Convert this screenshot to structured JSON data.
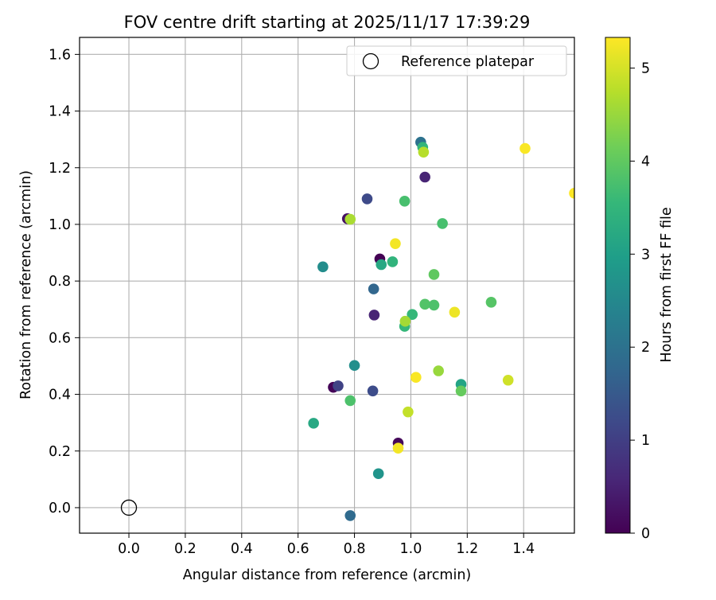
{
  "chart_data": {
    "type": "scatter",
    "title": "FOV centre drift starting at 2025/11/17 17:39:29",
    "xlabel": "Angular distance from reference (arcmin)",
    "ylabel": "Rotation from reference (arcmin)",
    "xlim": [
      -0.175,
      1.58
    ],
    "ylim": [
      -0.09,
      1.66
    ],
    "xticks": [
      0.0,
      0.2,
      0.4,
      0.6,
      0.8,
      1.0,
      1.2,
      1.4
    ],
    "xtick_labels": [
      "0.0",
      "0.2",
      "0.4",
      "0.6",
      "0.8",
      "1.0",
      "1.2",
      "1.4"
    ],
    "yticks": [
      0.0,
      0.2,
      0.4,
      0.6,
      0.8,
      1.0,
      1.2,
      1.4,
      1.6
    ],
    "ytick_labels": [
      "0.0",
      "0.2",
      "0.4",
      "0.6",
      "0.8",
      "1.0",
      "1.2",
      "1.4",
      "1.6"
    ],
    "grid": true,
    "legend": {
      "position": "top-right",
      "label": "Reference platepar",
      "point": {
        "x": 0.0,
        "y": 0.0
      }
    },
    "colorbar": {
      "label": "Hours from first FF file",
      "colormap": "viridis",
      "min": 0,
      "max": 5.33,
      "ticks": [
        0,
        1,
        2,
        3,
        4,
        5
      ],
      "tick_labels": [
        "0",
        "1",
        "2",
        "3",
        "4",
        "5"
      ],
      "stops": [
        "#440154",
        "#482878",
        "#3e4989",
        "#31688e",
        "#26828e",
        "#1f9e89",
        "#35b779",
        "#6ece58",
        "#b5de2b",
        "#fde725"
      ]
    },
    "points": [
      {
        "x": 0.725,
        "y": 0.425,
        "hours": 0.05
      },
      {
        "x": 0.775,
        "y": 1.02,
        "hours": 0.25
      },
      {
        "x": 0.89,
        "y": 0.878,
        "hours": 0.0
      },
      {
        "x": 0.955,
        "y": 0.228,
        "hours": 0.1
      },
      {
        "x": 1.05,
        "y": 1.167,
        "hours": 0.55
      },
      {
        "x": 0.87,
        "y": 0.68,
        "hours": 0.55
      },
      {
        "x": 0.742,
        "y": 0.43,
        "hours": 1.05
      },
      {
        "x": 0.845,
        "y": 1.09,
        "hours": 1.2
      },
      {
        "x": 0.865,
        "y": 0.412,
        "hours": 1.25
      },
      {
        "x": 0.868,
        "y": 0.772,
        "hours": 1.75
      },
      {
        "x": 1.035,
        "y": 1.29,
        "hours": 2.0
      },
      {
        "x": 0.785,
        "y": -0.028,
        "hours": 1.85
      },
      {
        "x": 0.688,
        "y": 0.85,
        "hours": 2.6
      },
      {
        "x": 0.8,
        "y": 0.502,
        "hours": 2.65
      },
      {
        "x": 0.885,
        "y": 0.12,
        "hours": 2.75
      },
      {
        "x": 1.178,
        "y": 0.435,
        "hours": 3.1
      },
      {
        "x": 0.655,
        "y": 0.298,
        "hours": 3.2
      },
      {
        "x": 0.895,
        "y": 0.858,
        "hours": 3.2
      },
      {
        "x": 0.935,
        "y": 0.868,
        "hours": 3.45
      },
      {
        "x": 1.042,
        "y": 1.272,
        "hours": 3.5
      },
      {
        "x": 0.978,
        "y": 0.64,
        "hours": 3.55
      },
      {
        "x": 1.005,
        "y": 0.682,
        "hours": 3.55
      },
      {
        "x": 0.785,
        "y": 0.378,
        "hours": 3.8
      },
      {
        "x": 0.978,
        "y": 1.082,
        "hours": 3.75
      },
      {
        "x": 1.112,
        "y": 1.003,
        "hours": 3.75
      },
      {
        "x": 1.05,
        "y": 0.718,
        "hours": 3.85
      },
      {
        "x": 1.082,
        "y": 0.715,
        "hours": 3.8
      },
      {
        "x": 1.082,
        "y": 0.823,
        "hours": 4.0
      },
      {
        "x": 1.285,
        "y": 0.725,
        "hours": 3.9
      },
      {
        "x": 1.178,
        "y": 0.412,
        "hours": 4.05
      },
      {
        "x": 0.98,
        "y": 0.658,
        "hours": 4.6
      },
      {
        "x": 1.098,
        "y": 0.483,
        "hours": 4.5
      },
      {
        "x": 0.785,
        "y": 1.018,
        "hours": 4.65
      },
      {
        "x": 1.045,
        "y": 1.255,
        "hours": 4.75
      },
      {
        "x": 0.99,
        "y": 0.338,
        "hours": 4.85
      },
      {
        "x": 1.345,
        "y": 0.45,
        "hours": 4.95
      },
      {
        "x": 0.945,
        "y": 0.932,
        "hours": 5.25
      },
      {
        "x": 1.018,
        "y": 0.46,
        "hours": 5.3
      },
      {
        "x": 0.955,
        "y": 0.21,
        "hours": 5.25
      },
      {
        "x": 1.155,
        "y": 0.69,
        "hours": 5.2
      },
      {
        "x": 1.405,
        "y": 1.268,
        "hours": 5.3
      },
      {
        "x": 1.58,
        "y": 1.11,
        "hours": 5.33
      }
    ]
  }
}
